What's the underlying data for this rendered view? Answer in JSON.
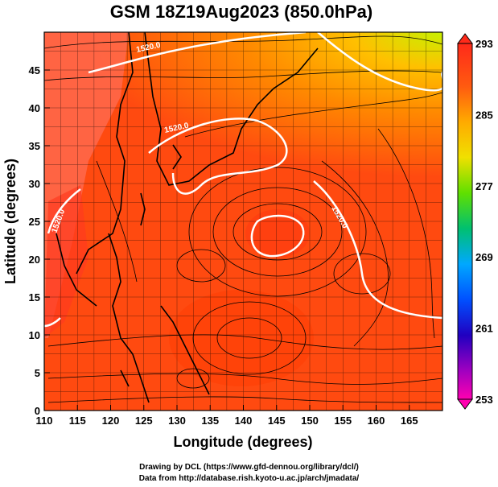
{
  "title": "GSM 18Z19Aug2023 (850.0hPa)",
  "axes": {
    "xlabel": "Longitude (degrees)",
    "ylabel": "Latitude  (degrees)",
    "xticks": [
      "110",
      "115",
      "120",
      "125",
      "130",
      "135",
      "140",
      "145",
      "150",
      "155",
      "160",
      "165"
    ],
    "yticks": [
      "0",
      "5",
      "10",
      "15",
      "20",
      "25",
      "30",
      "35",
      "40",
      "45"
    ]
  },
  "colorbar": {
    "labels": [
      "293",
      "285",
      "277",
      "269",
      "261",
      "253"
    ]
  },
  "contour_labels": [
    "1520.0",
    "1520.0",
    "1520.0",
    "1520.0"
  ],
  "footer": {
    "line1": "Drawing by DCL (https://www.gfd-dennou.org/library/dcl/)",
    "line2": "Data from http://database.rish.kyoto-u.ac.jp/arch/jmadata/"
  },
  "colors": {
    "field_main": "#ff4a10",
    "field_warm": "#ff3000",
    "field_cool": "#ff8a00",
    "field_coolest": "#c8f000",
    "contour": "#ffffff",
    "streamline": "#000000"
  }
}
